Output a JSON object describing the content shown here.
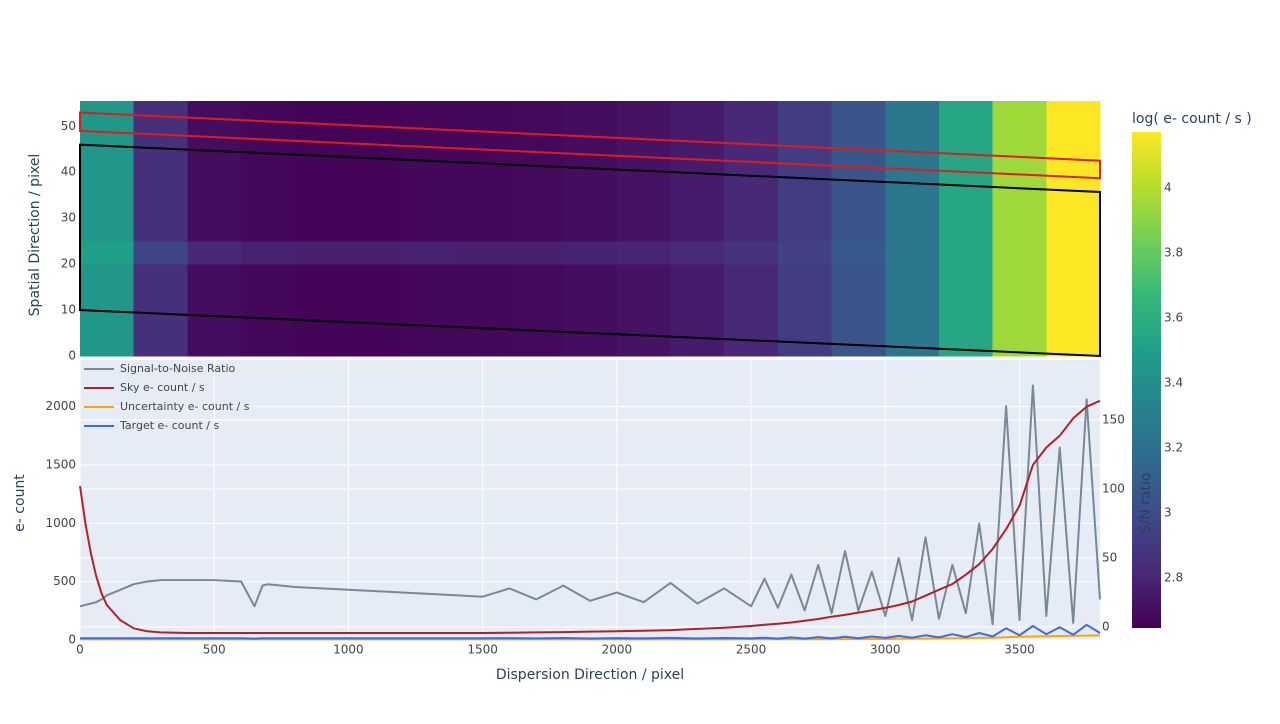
{
  "chart_data": [
    {
      "type": "heatmap",
      "ylabel": "Spatial Direction / pixel",
      "xlim": [
        0,
        3800
      ],
      "ylim": [
        0,
        55.5
      ],
      "yticks": [
        0,
        10,
        20,
        30,
        40,
        50
      ],
      "x_bins": [
        0,
        200,
        400,
        600,
        800,
        1000,
        1200,
        1400,
        1600,
        1800,
        2000,
        2200,
        2400,
        2600,
        2800,
        3000,
        3200,
        3400,
        3600,
        3800
      ],
      "y_bins": [
        0,
        5,
        10,
        15,
        20,
        25,
        30,
        35,
        40,
        45,
        50,
        55.5
      ],
      "z": [
        [
          3.45,
          2.85,
          2.7,
          2.67,
          2.66,
          2.66,
          2.67,
          2.67,
          2.68,
          2.7,
          2.72,
          2.76,
          2.82,
          2.92,
          3.05,
          3.25,
          3.55,
          3.95,
          4.17
        ],
        [
          3.45,
          2.85,
          2.7,
          2.67,
          2.66,
          2.66,
          2.67,
          2.67,
          2.68,
          2.7,
          2.72,
          2.76,
          2.82,
          2.92,
          3.05,
          3.25,
          3.55,
          3.95,
          4.17
        ],
        [
          3.45,
          2.85,
          2.7,
          2.67,
          2.66,
          2.66,
          2.67,
          2.67,
          2.68,
          2.7,
          2.72,
          2.76,
          2.82,
          2.92,
          3.05,
          3.25,
          3.55,
          3.95,
          4.17
        ],
        [
          3.45,
          2.85,
          2.7,
          2.67,
          2.66,
          2.66,
          2.67,
          2.67,
          2.68,
          2.7,
          2.72,
          2.76,
          2.82,
          2.92,
          3.05,
          3.25,
          3.55,
          3.95,
          4.17
        ],
        [
          3.5,
          2.97,
          2.82,
          2.79,
          2.78,
          2.78,
          2.79,
          2.78,
          2.78,
          2.79,
          2.8,
          2.83,
          2.87,
          2.95,
          3.07,
          3.25,
          3.55,
          3.95,
          4.17
        ],
        [
          3.45,
          2.85,
          2.7,
          2.67,
          2.66,
          2.66,
          2.67,
          2.67,
          2.68,
          2.7,
          2.72,
          2.76,
          2.82,
          2.92,
          3.05,
          3.25,
          3.55,
          3.95,
          4.17
        ],
        [
          3.45,
          2.85,
          2.7,
          2.67,
          2.66,
          2.66,
          2.67,
          2.67,
          2.68,
          2.7,
          2.72,
          2.76,
          2.82,
          2.92,
          3.05,
          3.25,
          3.55,
          3.95,
          4.17
        ],
        [
          3.45,
          2.85,
          2.7,
          2.67,
          2.66,
          2.66,
          2.67,
          2.67,
          2.68,
          2.7,
          2.72,
          2.76,
          2.82,
          2.92,
          3.05,
          3.25,
          3.55,
          3.95,
          4.17
        ],
        [
          3.45,
          2.85,
          2.7,
          2.67,
          2.66,
          2.66,
          2.67,
          2.67,
          2.68,
          2.7,
          2.72,
          2.76,
          2.82,
          2.92,
          3.05,
          3.25,
          3.55,
          3.95,
          4.17
        ],
        [
          3.45,
          2.85,
          2.7,
          2.67,
          2.66,
          2.66,
          2.67,
          2.67,
          2.68,
          2.7,
          2.72,
          2.76,
          2.82,
          2.92,
          3.05,
          3.25,
          3.55,
          3.95,
          4.17
        ],
        [
          3.45,
          2.85,
          2.7,
          2.67,
          2.66,
          2.66,
          2.67,
          2.67,
          2.68,
          2.7,
          2.72,
          2.76,
          2.82,
          2.92,
          3.05,
          3.25,
          3.55,
          3.95,
          4.17
        ]
      ],
      "zlim": [
        2.646,
        4.172
      ],
      "colorscale": [
        "#440154",
        "#482878",
        "#3e4989",
        "#31688e",
        "#26828e",
        "#1f9e89",
        "#35b779",
        "#6ece58",
        "#b5de2b",
        "#fde725"
      ],
      "colorbar_title": "log( e- count / s )",
      "colorbar_ticks": [
        2.8,
        3,
        3.2,
        3.4,
        3.6,
        3.8,
        4
      ],
      "apertures": [
        {
          "color": "#e31a1c",
          "x": [
            0,
            3800,
            3800,
            0
          ],
          "y": [
            53,
            42.5,
            38.7,
            49
          ]
        },
        {
          "color": "#000000",
          "x": [
            0,
            3800,
            3800,
            0
          ],
          "y": [
            46,
            35.7,
            0,
            10
          ]
        }
      ]
    },
    {
      "type": "line",
      "xlabel": "Dispersion Direction / pixel",
      "ylabel": "e- count",
      "y2label": "S/N ratio",
      "xlim": [
        0,
        3800
      ],
      "xticks": [
        0,
        500,
        1000,
        1500,
        2000,
        2500,
        3000,
        3500
      ],
      "ylim": [
        0,
        2400
      ],
      "yticks": [
        0,
        500,
        1000,
        1500,
        2000
      ],
      "y2lim": [
        -9.4,
        193.5
      ],
      "y2ticks": [
        0,
        50,
        100,
        150
      ],
      "grid": true,
      "legend": "top-left",
      "x": [
        0,
        20,
        40,
        60,
        80,
        100,
        150,
        200,
        250,
        300,
        400,
        500,
        600,
        650,
        680,
        700,
        800,
        900,
        1000,
        1100,
        1200,
        1300,
        1400,
        1500,
        1600,
        1700,
        1800,
        1900,
        2000,
        2100,
        2200,
        2300,
        2400,
        2500,
        2550,
        2600,
        2650,
        2700,
        2750,
        2800,
        2850,
        2900,
        2950,
        3000,
        3050,
        3100,
        3150,
        3200,
        3250,
        3300,
        3350,
        3400,
        3450,
        3500,
        3550,
        3600,
        3650,
        3700,
        3750,
        3800
      ],
      "series": [
        {
          "name": "Signal-to-Noise Ratio",
          "color": "#778899",
          "axis": "y2",
          "values": [
            15,
            16,
            17,
            18,
            20,
            23,
            27,
            31,
            33,
            34,
            34,
            34,
            33,
            15,
            30,
            31,
            29,
            28,
            27,
            26,
            25,
            24,
            23,
            22,
            28,
            20,
            30,
            19,
            25,
            18,
            32,
            17,
            28,
            15,
            35,
            14,
            38,
            12,
            45,
            10,
            55,
            12,
            40,
            8,
            50,
            5,
            65,
            6,
            45,
            10,
            75,
            2,
            160,
            5,
            175,
            8,
            130,
            3,
            165,
            20
          ]
        },
        {
          "name": "Sky e- count / s",
          "color": "#b22222",
          "values": [
            1320,
            1000,
            750,
            550,
            400,
            300,
            170,
            100,
            75,
            65,
            60,
            60,
            60,
            60,
            60,
            60,
            60,
            60,
            60,
            60,
            60,
            60,
            60,
            60,
            62,
            65,
            68,
            72,
            75,
            80,
            85,
            95,
            105,
            120,
            130,
            140,
            150,
            165,
            180,
            200,
            215,
            235,
            255,
            275,
            300,
            330,
            380,
            430,
            480,
            560,
            650,
            780,
            950,
            1150,
            1500,
            1650,
            1750,
            1900,
            2000,
            2050
          ]
        },
        {
          "name": "Uncertainty e- count / s",
          "color": "#ffa500",
          "values": [
            5,
            5,
            5,
            5,
            5,
            5,
            5,
            5,
            5,
            5,
            5,
            5,
            5,
            5,
            5,
            5,
            5,
            5,
            5,
            5,
            5,
            5,
            5,
            5,
            5,
            5,
            5,
            5,
            5,
            5,
            5,
            5,
            5,
            6,
            6,
            6,
            6,
            7,
            7,
            7,
            8,
            8,
            9,
            9,
            10,
            10,
            12,
            13,
            14,
            16,
            18,
            20,
            24,
            28,
            30,
            32,
            34,
            36,
            38,
            40
          ]
        },
        {
          "name": "Target e- count / s",
          "color": "#4169e1",
          "values": [
            15,
            15,
            15,
            15,
            15,
            15,
            15,
            15,
            15,
            15,
            15,
            15,
            15,
            12,
            15,
            15,
            15,
            15,
            15,
            15,
            15,
            15,
            15,
            15,
            16,
            14,
            17,
            13,
            16,
            14,
            18,
            13,
            17,
            14,
            20,
            12,
            22,
            12,
            25,
            14,
            28,
            15,
            30,
            18,
            35,
            20,
            40,
            22,
            50,
            25,
            60,
            30,
            100,
            40,
            120,
            50,
            110,
            45,
            130,
            60
          ]
        }
      ]
    }
  ]
}
